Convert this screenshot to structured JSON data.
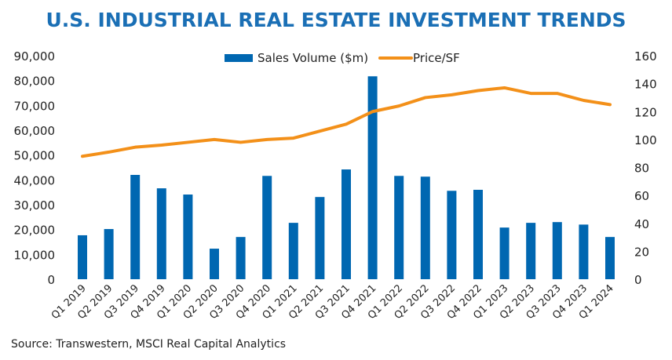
{
  "chart_data": {
    "type": "bar+line",
    "title": "U.S. INDUSTRIAL REAL ESTATE INVESTMENT TRENDS",
    "source": "Source: Transwestern, MSCI Real Capital Analytics",
    "categories": [
      "Q1 2019",
      "Q2 2019",
      "Q3 2019",
      "Q4 2019",
      "Q1 2020",
      "Q2 2020",
      "Q3 2020",
      "Q4 2020",
      "Q1 2021",
      "Q2 2021",
      "Q3 2021",
      "Q4 2021",
      "Q1 2022",
      "Q2 2022",
      "Q3 2022",
      "Q4 2022",
      "Q1 2023",
      "Q2 2023",
      "Q3 2023",
      "Q4 2023",
      "Q1 2024"
    ],
    "series": [
      {
        "name": "Sales Volume ($m)",
        "type": "bar",
        "axis": "left",
        "color": "#0067b1",
        "values": [
          17700,
          20200,
          42000,
          36600,
          34100,
          12300,
          17000,
          41600,
          22700,
          33100,
          44200,
          81700,
          41600,
          41300,
          35600,
          36000,
          20800,
          22700,
          23000,
          22000,
          17000
        ]
      },
      {
        "name": "Price/SF",
        "type": "line",
        "axis": "right",
        "color": "#f39019",
        "values": [
          88,
          91,
          94.5,
          96,
          98,
          100,
          98,
          100,
          101,
          106,
          111,
          120,
          124,
          130,
          132,
          135,
          137,
          133,
          133,
          128,
          125
        ]
      }
    ],
    "left_axis": {
      "ylim": [
        0,
        90000
      ],
      "ticks": [
        "0",
        "10,000",
        "20,000",
        "30,000",
        "40,000",
        "50,000",
        "60,000",
        "70,000",
        "80,000",
        "90,000"
      ]
    },
    "right_axis": {
      "ylim": [
        0,
        160
      ],
      "ticks": [
        "0",
        "20",
        "40",
        "60",
        "80",
        "100",
        "120",
        "140",
        "160"
      ]
    },
    "legend": "top-center",
    "grid": false,
    "title_color": "#1a6fb5"
  }
}
